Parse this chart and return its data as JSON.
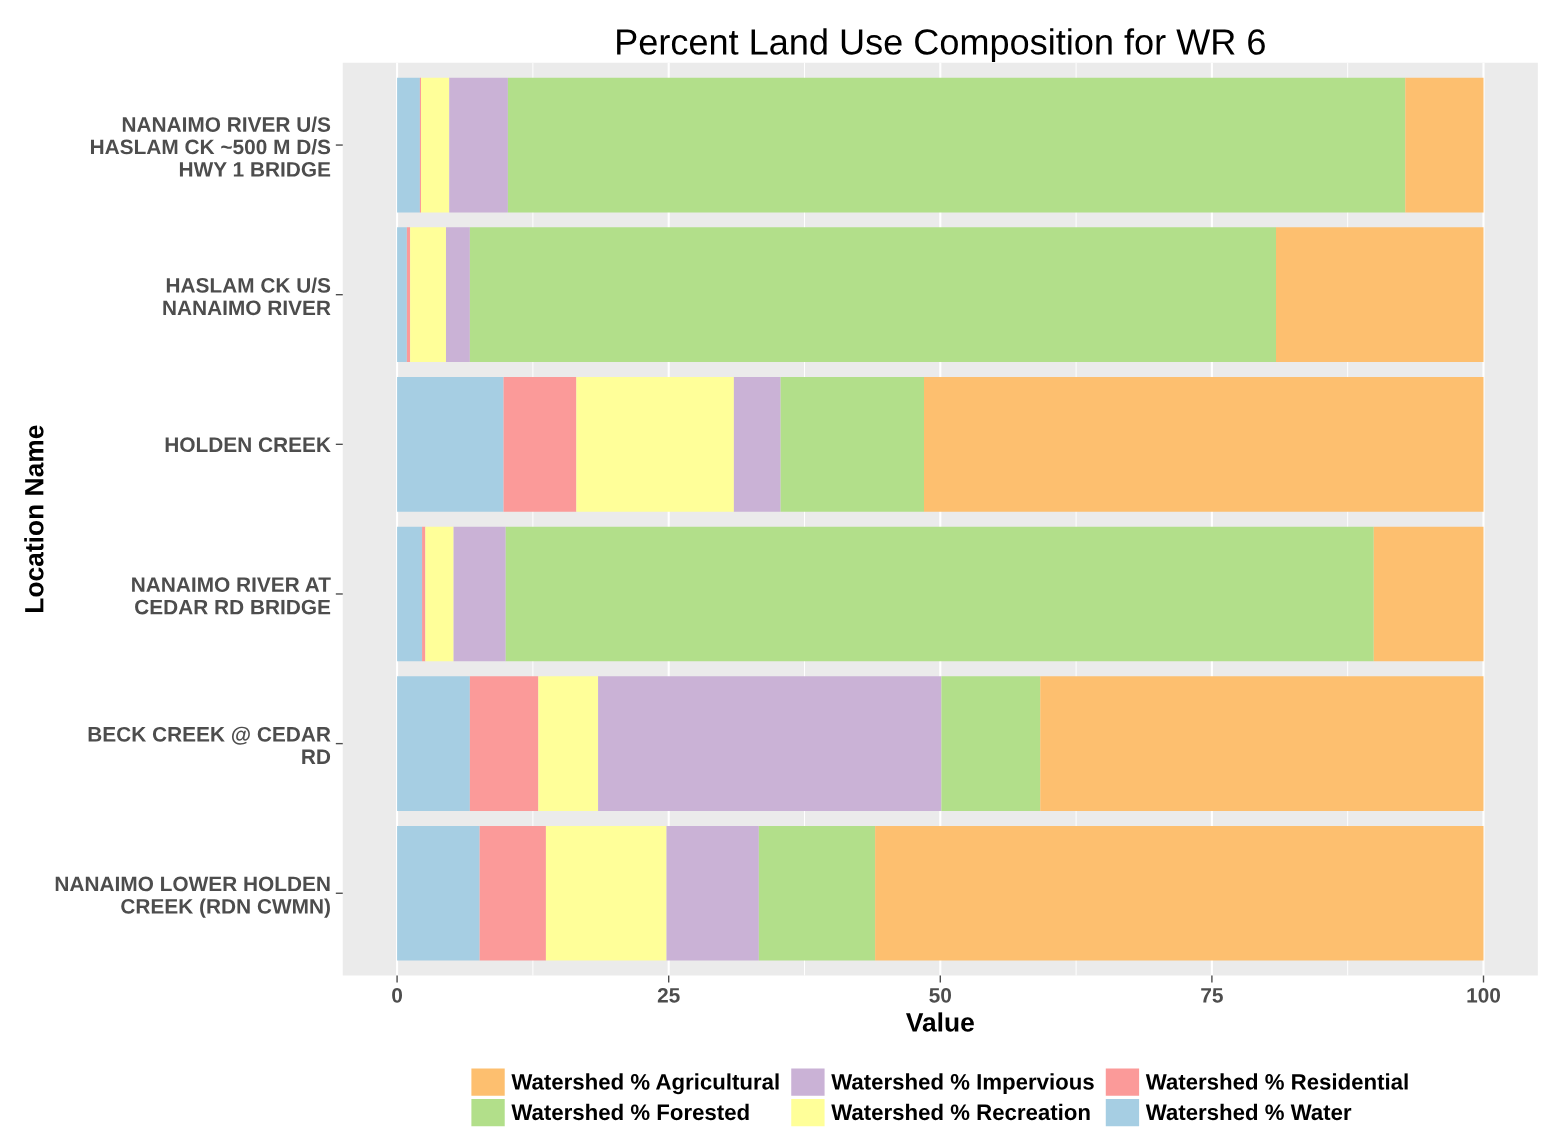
{
  "chart_data": {
    "type": "bar",
    "orientation": "horizontal",
    "stacked": true,
    "title": "Percent Land Use Composition for WR 6",
    "xlabel": "Value",
    "ylabel": "Location Name",
    "categories": [
      "NANAIMO RIVER U/S\nHASLAM CK ~500 M D/S\nHWY 1 BRIDGE",
      "HASLAM CK U/S\nNANAIMO RIVER",
      "HOLDEN CREEK",
      "NANAIMO RIVER AT\nCEDAR RD BRIDGE",
      "BECK CREEK @ CEDAR\nRD",
      "NANAIMO LOWER HOLDEN\nCREEK (RDN CWMN)"
    ],
    "series": [
      {
        "name": "Watershed % Water",
        "color": "#a6cee3",
        "values": [
          2.1,
          0.9,
          9.8,
          2.3,
          6.7,
          7.6
        ]
      },
      {
        "name": "Watershed % Residential",
        "color": "#fb9a99",
        "values": [
          0.1,
          0.3,
          6.7,
          0.3,
          6.3,
          6.1
        ]
      },
      {
        "name": "Watershed % Recreation",
        "color": "#ffff99",
        "values": [
          2.6,
          3.3,
          14.5,
          2.6,
          5.5,
          11.1
        ]
      },
      {
        "name": "Watershed % Impervious",
        "color": "#cab2d6",
        "values": [
          5.4,
          2.2,
          4.3,
          4.8,
          31.6,
          8.5
        ]
      },
      {
        "name": "Watershed % Forested",
        "color": "#b2df8a",
        "values": [
          82.6,
          74.2,
          13.2,
          79.9,
          9.1,
          10.7
        ]
      },
      {
        "name": "Watershed % Agricultural",
        "color": "#fdbf6f",
        "values": [
          7.2,
          19.1,
          51.5,
          10.1,
          40.8,
          56.0
        ]
      }
    ],
    "xlim": [
      -5,
      105
    ],
    "xticks": [
      0,
      25,
      50,
      75,
      100
    ],
    "grid": "x",
    "legend": "bottom"
  }
}
